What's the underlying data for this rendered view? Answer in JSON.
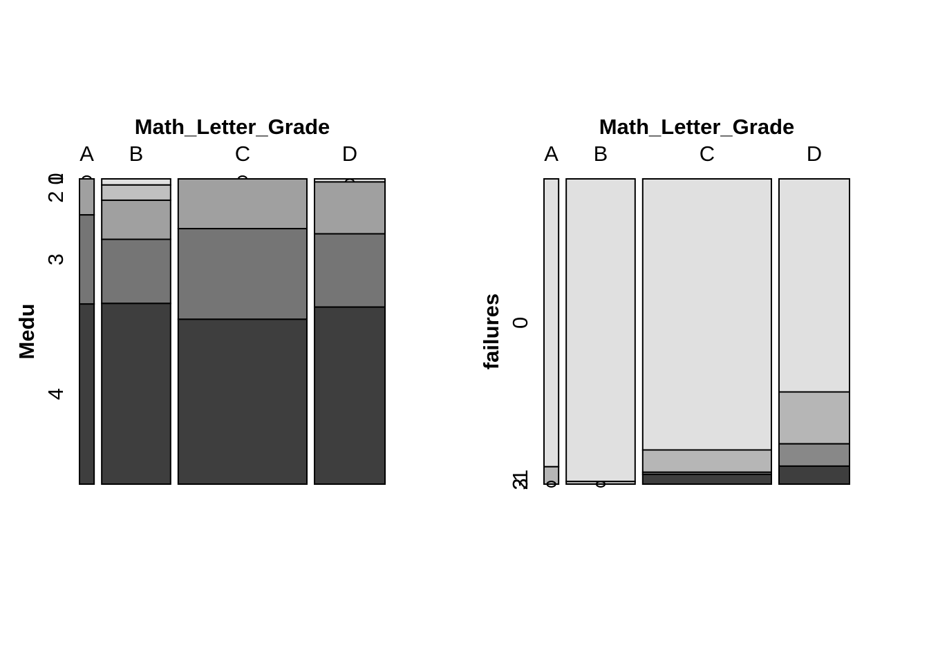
{
  "chart_data": [
    {
      "type": "mosaic",
      "title": "Math_Letter_Grade",
      "xlabel": "Math_Letter_Grade",
      "ylabel": "Medu",
      "categories": [
        "A",
        "B",
        "C",
        "D"
      ],
      "column_widths": [
        0.045,
        0.212,
        0.396,
        0.217
      ],
      "levels": [
        "0",
        "1",
        "2",
        "3",
        "4"
      ],
      "y_tick_labels": [
        "0",
        "1",
        "2",
        "3",
        "4"
      ],
      "shades": [
        "#ffffff",
        "#e0e0e0",
        "#c0c0c0",
        "#a0a0a0",
        "#757575",
        "#3e3e3e"
      ],
      "proportions": {
        "A": [
          0,
          0,
          0.118,
          0.292,
          0.59
        ],
        "B": [
          0.02,
          0.05,
          0.128,
          0.21,
          0.592
        ],
        "C": [
          0.0,
          0.0,
          0.163,
          0.297,
          0.54
        ],
        "D": [
          0.01,
          0.0,
          0.17,
          0.24,
          0.58
        ]
      }
    },
    {
      "type": "mosaic",
      "title": "Math_Letter_Grade",
      "xlabel": "Math_Letter_Grade",
      "ylabel": "failures",
      "categories": [
        "A",
        "B",
        "C",
        "D"
      ],
      "column_widths": [
        0.045,
        0.212,
        0.396,
        0.217
      ],
      "levels": [
        "0",
        "1",
        "2",
        "3"
      ],
      "y_tick_labels": [
        "0",
        "1",
        "2",
        "3"
      ],
      "shades": [
        "#e0e0e0",
        "#b6b6b6",
        "#888888",
        "#3e3e3e"
      ],
      "proportions": {
        "A": [
          0.943,
          0.057,
          0,
          0
        ],
        "B": [
          0.991,
          0.009,
          0,
          0
        ],
        "C": [
          0.888,
          0.073,
          0.007,
          0.032
        ],
        "D": [
          0.698,
          0.17,
          0.073,
          0.059
        ]
      }
    }
  ]
}
